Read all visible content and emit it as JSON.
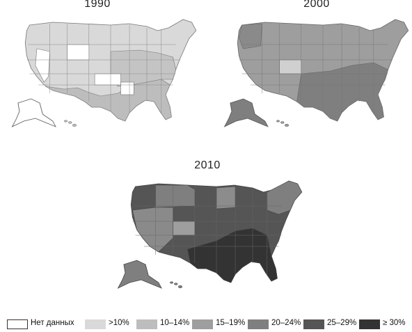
{
  "maps": [
    {
      "year": "1990"
    },
    {
      "year": "2000"
    },
    {
      "year": "2010"
    }
  ],
  "legend": [
    {
      "label": "Нет данных",
      "color": "#ffffff"
    },
    {
      "label": ">10%",
      "color": "#d9d9d9"
    },
    {
      "label": "10–14%",
      "color": "#bdbdbd"
    },
    {
      "label": "15–19%",
      "color": "#9e9e9e"
    },
    {
      "label": "20–24%",
      "color": "#7f7f7f"
    },
    {
      "label": "25–29%",
      "color": "#555555"
    },
    {
      "label": "≥ 30%",
      "color": "#333333"
    }
  ]
}
